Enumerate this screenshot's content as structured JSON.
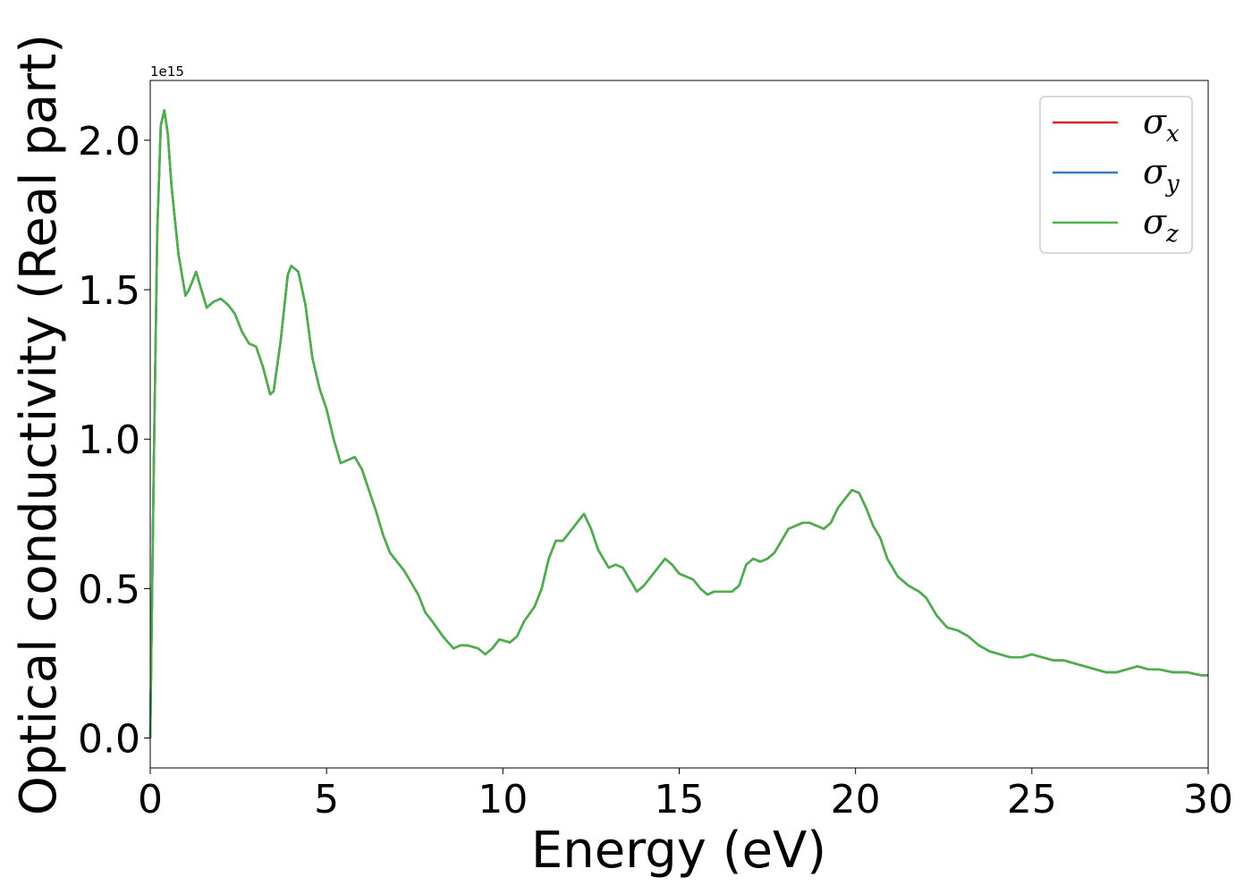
{
  "chart_data": {
    "type": "line",
    "title": "",
    "xlabel": "Energy (eV)",
    "ylabel": "Optical conductivity (Real part)",
    "y_offset_text": "1e15",
    "y_scale": 1000000000000000.0,
    "xlim": [
      0,
      30
    ],
    "ylim": [
      -0.1,
      2.2
    ],
    "x_ticks": [
      0,
      5,
      10,
      15,
      20,
      25,
      30
    ],
    "x_tick_labels": [
      "0",
      "5",
      "10",
      "15",
      "20",
      "25",
      "30"
    ],
    "y_ticks": [
      0.0,
      0.5,
      1.0,
      1.5,
      2.0
    ],
    "y_tick_labels": [
      "0.0",
      "0.5",
      "1.0",
      "1.5",
      "2.0"
    ],
    "grid": false,
    "legend_position": "top-right",
    "x": [
      0.0,
      0.1,
      0.2,
      0.3,
      0.4,
      0.5,
      0.6,
      0.8,
      1.0,
      1.1,
      1.3,
      1.4,
      1.6,
      1.8,
      2.0,
      2.2,
      2.4,
      2.6,
      2.8,
      3.0,
      3.2,
      3.4,
      3.5,
      3.7,
      3.9,
      4.0,
      4.2,
      4.4,
      4.6,
      4.8,
      5.0,
      5.2,
      5.4,
      5.6,
      5.8,
      6.0,
      6.2,
      6.4,
      6.6,
      6.8,
      7.0,
      7.2,
      7.4,
      7.6,
      7.8,
      8.0,
      8.3,
      8.6,
      8.8,
      9.0,
      9.3,
      9.5,
      9.7,
      9.9,
      10.2,
      10.4,
      10.6,
      10.9,
      11.1,
      11.3,
      11.5,
      11.7,
      11.9,
      12.1,
      12.3,
      12.5,
      12.7,
      13.0,
      13.2,
      13.4,
      13.6,
      13.8,
      14.0,
      14.2,
      14.4,
      14.6,
      14.8,
      15.0,
      15.2,
      15.4,
      15.6,
      15.8,
      16.0,
      16.2,
      16.5,
      16.7,
      16.9,
      17.1,
      17.3,
      17.5,
      17.7,
      17.9,
      18.1,
      18.3,
      18.5,
      18.7,
      18.9,
      19.1,
      19.3,
      19.5,
      19.7,
      19.9,
      20.1,
      20.3,
      20.5,
      20.7,
      20.9,
      21.2,
      21.5,
      21.8,
      22.0,
      22.3,
      22.6,
      22.9,
      23.2,
      23.5,
      23.8,
      24.1,
      24.4,
      24.7,
      25.0,
      25.3,
      25.6,
      25.9,
      26.2,
      26.5,
      26.8,
      27.1,
      27.4,
      27.7,
      28.0,
      28.3,
      28.6,
      29.0,
      29.4,
      29.8,
      30.0
    ],
    "series": [
      {
        "name": "σx",
        "color": "#d62728",
        "values": [
          0.0,
          0.9,
          1.7,
          2.05,
          2.1,
          2.02,
          1.85,
          1.62,
          1.48,
          1.5,
          1.56,
          1.52,
          1.44,
          1.46,
          1.47,
          1.45,
          1.42,
          1.36,
          1.32,
          1.31,
          1.24,
          1.15,
          1.16,
          1.33,
          1.55,
          1.58,
          1.56,
          1.45,
          1.27,
          1.17,
          1.1,
          1.0,
          0.92,
          0.93,
          0.94,
          0.9,
          0.83,
          0.76,
          0.68,
          0.62,
          0.59,
          0.56,
          0.52,
          0.48,
          0.42,
          0.39,
          0.34,
          0.3,
          0.31,
          0.31,
          0.3,
          0.28,
          0.3,
          0.33,
          0.32,
          0.34,
          0.39,
          0.44,
          0.5,
          0.6,
          0.66,
          0.66,
          0.69,
          0.72,
          0.75,
          0.7,
          0.63,
          0.57,
          0.58,
          0.57,
          0.53,
          0.49,
          0.51,
          0.54,
          0.57,
          0.6,
          0.58,
          0.55,
          0.54,
          0.53,
          0.5,
          0.48,
          0.49,
          0.49,
          0.49,
          0.51,
          0.58,
          0.6,
          0.59,
          0.6,
          0.62,
          0.66,
          0.7,
          0.71,
          0.72,
          0.72,
          0.71,
          0.7,
          0.72,
          0.77,
          0.8,
          0.83,
          0.82,
          0.77,
          0.71,
          0.67,
          0.6,
          0.54,
          0.51,
          0.49,
          0.47,
          0.41,
          0.37,
          0.36,
          0.34,
          0.31,
          0.29,
          0.28,
          0.27,
          0.27,
          0.28,
          0.27,
          0.26,
          0.26,
          0.25,
          0.24,
          0.23,
          0.22,
          0.22,
          0.23,
          0.24,
          0.23,
          0.23,
          0.22,
          0.22,
          0.21,
          0.21
        ]
      },
      {
        "name": "σy",
        "color": "#377eb8",
        "values": [
          0.0,
          0.9,
          1.7,
          2.05,
          2.1,
          2.02,
          1.85,
          1.62,
          1.48,
          1.5,
          1.56,
          1.52,
          1.44,
          1.46,
          1.47,
          1.45,
          1.42,
          1.36,
          1.32,
          1.31,
          1.24,
          1.15,
          1.16,
          1.33,
          1.55,
          1.58,
          1.56,
          1.45,
          1.27,
          1.17,
          1.1,
          1.0,
          0.92,
          0.93,
          0.94,
          0.9,
          0.83,
          0.76,
          0.68,
          0.62,
          0.59,
          0.56,
          0.52,
          0.48,
          0.42,
          0.39,
          0.34,
          0.3,
          0.31,
          0.31,
          0.3,
          0.28,
          0.3,
          0.33,
          0.32,
          0.34,
          0.39,
          0.44,
          0.5,
          0.6,
          0.66,
          0.66,
          0.69,
          0.72,
          0.75,
          0.7,
          0.63,
          0.57,
          0.58,
          0.57,
          0.53,
          0.49,
          0.51,
          0.54,
          0.57,
          0.6,
          0.58,
          0.55,
          0.54,
          0.53,
          0.5,
          0.48,
          0.49,
          0.49,
          0.49,
          0.51,
          0.58,
          0.6,
          0.59,
          0.6,
          0.62,
          0.66,
          0.7,
          0.71,
          0.72,
          0.72,
          0.71,
          0.7,
          0.72,
          0.77,
          0.8,
          0.83,
          0.82,
          0.77,
          0.71,
          0.67,
          0.6,
          0.54,
          0.51,
          0.49,
          0.47,
          0.41,
          0.37,
          0.36,
          0.34,
          0.31,
          0.29,
          0.28,
          0.27,
          0.27,
          0.28,
          0.27,
          0.26,
          0.26,
          0.25,
          0.24,
          0.23,
          0.22,
          0.22,
          0.23,
          0.24,
          0.23,
          0.23,
          0.22,
          0.22,
          0.21,
          0.21
        ]
      },
      {
        "name": "σz",
        "color": "#4daf4a",
        "values": [
          0.0,
          0.9,
          1.7,
          2.05,
          2.1,
          2.02,
          1.85,
          1.62,
          1.48,
          1.5,
          1.56,
          1.52,
          1.44,
          1.46,
          1.47,
          1.45,
          1.42,
          1.36,
          1.32,
          1.31,
          1.24,
          1.15,
          1.16,
          1.33,
          1.55,
          1.58,
          1.56,
          1.45,
          1.27,
          1.17,
          1.1,
          1.0,
          0.92,
          0.93,
          0.94,
          0.9,
          0.83,
          0.76,
          0.68,
          0.62,
          0.59,
          0.56,
          0.52,
          0.48,
          0.42,
          0.39,
          0.34,
          0.3,
          0.31,
          0.31,
          0.3,
          0.28,
          0.3,
          0.33,
          0.32,
          0.34,
          0.39,
          0.44,
          0.5,
          0.6,
          0.66,
          0.66,
          0.69,
          0.72,
          0.75,
          0.7,
          0.63,
          0.57,
          0.58,
          0.57,
          0.53,
          0.49,
          0.51,
          0.54,
          0.57,
          0.6,
          0.58,
          0.55,
          0.54,
          0.53,
          0.5,
          0.48,
          0.49,
          0.49,
          0.49,
          0.51,
          0.58,
          0.6,
          0.59,
          0.6,
          0.62,
          0.66,
          0.7,
          0.71,
          0.72,
          0.72,
          0.71,
          0.7,
          0.72,
          0.77,
          0.8,
          0.83,
          0.82,
          0.77,
          0.71,
          0.67,
          0.6,
          0.54,
          0.51,
          0.49,
          0.47,
          0.41,
          0.37,
          0.36,
          0.34,
          0.31,
          0.29,
          0.28,
          0.27,
          0.27,
          0.28,
          0.27,
          0.26,
          0.26,
          0.25,
          0.24,
          0.23,
          0.22,
          0.22,
          0.23,
          0.24,
          0.23,
          0.23,
          0.22,
          0.22,
          0.21,
          0.21
        ]
      }
    ],
    "legend": [
      {
        "symbol": "σ",
        "subscript": "x",
        "color": "#d62728"
      },
      {
        "symbol": "σ",
        "subscript": "y",
        "color": "#377eb8"
      },
      {
        "symbol": "σ",
        "subscript": "z",
        "color": "#4daf4a"
      }
    ]
  }
}
